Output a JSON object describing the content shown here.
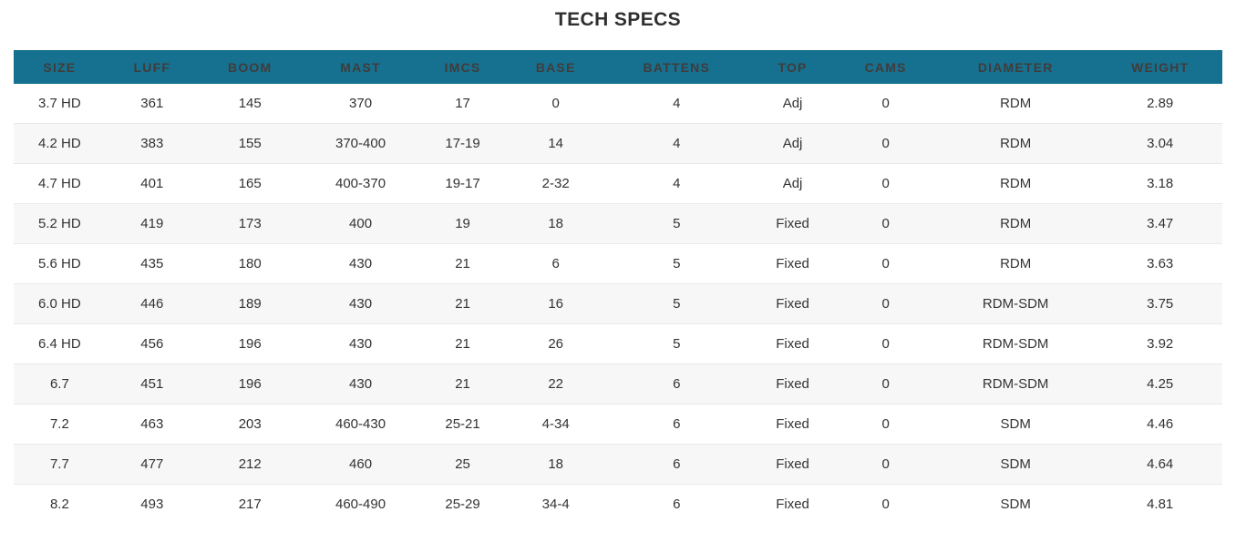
{
  "title": "TECH SPECS",
  "colors": {
    "header_bg": "#15718f",
    "header_text": "#423b3b",
    "title_text": "#2f2f2f",
    "body_text": "#333333",
    "row_alt_bg": "#f7f7f7",
    "row_border": "#e9e9e9"
  },
  "table": {
    "columns": [
      "SIZE",
      "LUFF",
      "BOOM",
      "MAST",
      "IMCS",
      "BASE",
      "BATTENS",
      "TOP",
      "CAMS",
      "DIAMETER",
      "WEIGHT"
    ],
    "rows": [
      [
        "3.7 HD",
        "361",
        "145",
        "370",
        "17",
        "0",
        "4",
        "Adj",
        "0",
        "RDM",
        "2.89"
      ],
      [
        "4.2 HD",
        "383",
        "155",
        "370-400",
        "17-19",
        "14",
        "4",
        "Adj",
        "0",
        "RDM",
        "3.04"
      ],
      [
        "4.7 HD",
        "401",
        "165",
        "400-370",
        "19-17",
        "2-32",
        "4",
        "Adj",
        "0",
        "RDM",
        "3.18"
      ],
      [
        "5.2 HD",
        "419",
        "173",
        "400",
        "19",
        "18",
        "5",
        "Fixed",
        "0",
        "RDM",
        "3.47"
      ],
      [
        "5.6 HD",
        "435",
        "180",
        "430",
        "21",
        "6",
        "5",
        "Fixed",
        "0",
        "RDM",
        "3.63"
      ],
      [
        "6.0 HD",
        "446",
        "189",
        "430",
        "21",
        "16",
        "5",
        "Fixed",
        "0",
        "RDM-SDM",
        "3.75"
      ],
      [
        "6.4 HD",
        "456",
        "196",
        "430",
        "21",
        "26",
        "5",
        "Fixed",
        "0",
        "RDM-SDM",
        "3.92"
      ],
      [
        "6.7",
        "451",
        "196",
        "430",
        "21",
        "22",
        "6",
        "Fixed",
        "0",
        "RDM-SDM",
        "4.25"
      ],
      [
        "7.2",
        "463",
        "203",
        "460-430",
        "25-21",
        "4-34",
        "6",
        "Fixed",
        "0",
        "SDM",
        "4.46"
      ],
      [
        "7.7",
        "477",
        "212",
        "460",
        "25",
        "18",
        "6",
        "Fixed",
        "0",
        "SDM",
        "4.64"
      ],
      [
        "8.2",
        "493",
        "217",
        "460-490",
        "25-29",
        "34-4",
        "6",
        "Fixed",
        "0",
        "SDM",
        "4.81"
      ]
    ]
  }
}
